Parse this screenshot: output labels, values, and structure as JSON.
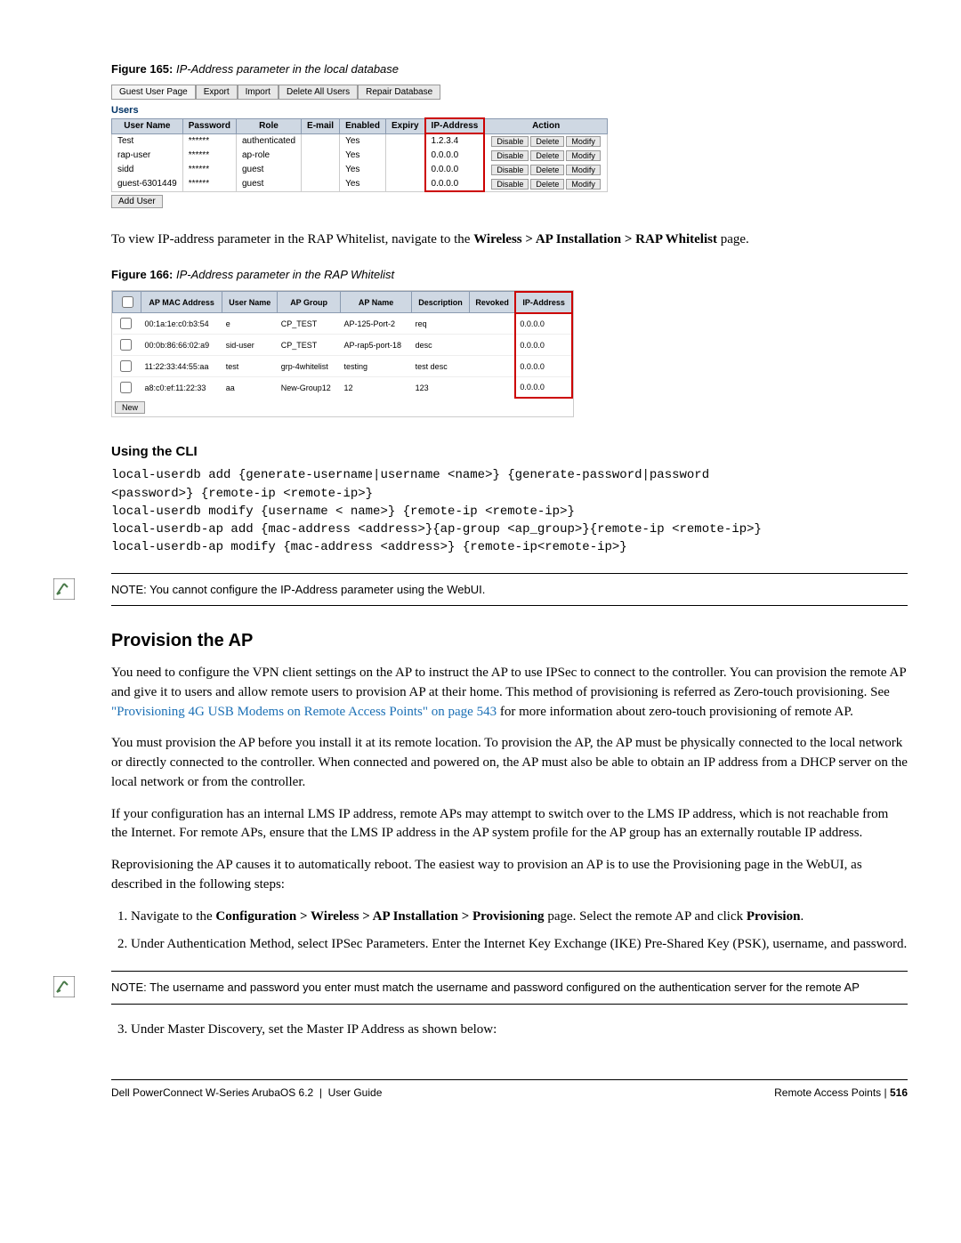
{
  "figure165": {
    "caption_label": "Figure 165:",
    "caption_text": "IP-Address parameter in the local database",
    "tabs": [
      "Guest User Page",
      "Export",
      "Import",
      "Delete All Users",
      "Repair Database"
    ],
    "section_label": "Users",
    "headers": [
      "User Name",
      "Password",
      "Role",
      "E-mail",
      "Enabled",
      "Expiry",
      "IP-Address",
      "Action"
    ],
    "rows": [
      {
        "user": "Test",
        "pass": "******",
        "role": "authenticated",
        "email": "",
        "enabled": "Yes",
        "expiry": "",
        "ip": "1.2.3.4"
      },
      {
        "user": "rap-user",
        "pass": "******",
        "role": "ap-role",
        "email": "",
        "enabled": "Yes",
        "expiry": "",
        "ip": "0.0.0.0"
      },
      {
        "user": "sidd",
        "pass": "******",
        "role": "guest",
        "email": "",
        "enabled": "Yes",
        "expiry": "",
        "ip": "0.0.0.0"
      },
      {
        "user": "guest-6301449",
        "pass": "******",
        "role": "guest",
        "email": "",
        "enabled": "Yes",
        "expiry": "",
        "ip": "0.0.0.0"
      }
    ],
    "action_buttons": [
      "Disable",
      "Delete",
      "Modify"
    ],
    "add_user_button": "Add User"
  },
  "para1_pre": "To view IP-address parameter in the RAP Whitelist, navigate to the ",
  "para1_bold": "Wireless > AP Installation > RAP Whitelist",
  "para1_post": " page.",
  "figure166": {
    "caption_label": "Figure 166:",
    "caption_text": "IP-Address parameter in the RAP Whitelist",
    "headers": [
      "",
      "AP MAC Address",
      "User Name",
      "AP Group",
      "AP Name",
      "Description",
      "Revoked",
      "IP-Address"
    ],
    "rows": [
      {
        "mac": "00:1a:1e:c0:b3:54",
        "user": "e",
        "group": "CP_TEST",
        "name": "AP-125-Port-2",
        "desc": "req",
        "rev": "",
        "ip": "0.0.0.0"
      },
      {
        "mac": "00:0b:86:66:02:a9",
        "user": "sid-user",
        "group": "CP_TEST",
        "name": "AP-rap5-port-18",
        "desc": "desc",
        "rev": "",
        "ip": "0.0.0.0"
      },
      {
        "mac": "11:22:33:44:55:aa",
        "user": "test",
        "group": "grp-4whitelist",
        "name": "testing",
        "desc": "test desc",
        "rev": "",
        "ip": "0.0.0.0"
      },
      {
        "mac": "a8:c0:ef:11:22:33",
        "user": "aa",
        "group": "New-Group12",
        "name": "12",
        "desc": "123",
        "rev": "",
        "ip": "0.0.0.0"
      }
    ],
    "new_button": "New"
  },
  "cli_heading": "Using the CLI",
  "cli_text": "local-userdb add {generate-username|username <name>} {generate-password|password\n<password>} {remote-ip <remote-ip>}\nlocal-userdb modify {username < name>} {remote-ip <remote-ip>}\nlocal-userdb-ap add {mac-address <address>}{ap-group <ap_group>}{remote-ip <remote-ip>}\nlocal-userdb-ap modify {mac-address <address>} {remote-ip<remote-ip>}",
  "note1": "NOTE: You cannot configure the IP-Address parameter using the WebUI.",
  "section_heading": "Provision the AP",
  "para2_a": "You need to configure the VPN client settings on the AP to instruct the AP to use IPSec to connect to the controller. You can provision the remote AP and give it to users and allow remote users to provision AP at their home. This method of provisioning is referred as Zero-touch provisioning. See ",
  "para2_link": "\"Provisioning 4G USB Modems on Remote Access Points\" on page 543",
  "para2_b": " for more information about zero-touch provisioning of remote AP.",
  "para3": "You must provision the AP before you install it at its remote location. To provision the AP, the AP must be physically connected to the local network or directly connected to the controller. When connected and powered on, the AP must also be able to obtain an IP address from a DHCP server on the local network or from the controller.",
  "para4": "If your configuration has an internal LMS IP address, remote APs may attempt to switch over to the LMS IP address, which is not reachable from the Internet. For remote APs, ensure that the LMS IP address in the AP system profile for the AP group has an externally routable IP address.",
  "para5": "Reprovisioning the AP causes it to automatically reboot. The easiest way to provision an AP is to use the Provisioning page in the WebUI, as described in the following steps:",
  "step1_a": "Navigate to the ",
  "step1_bold1": "Configuration > Wireless > AP Installation > Provisioning",
  "step1_b": " page. Select the remote AP and click ",
  "step1_bold2": "Provision",
  "step1_c": ".",
  "step2": "Under Authentication Method, select IPSec Parameters. Enter the Internet Key Exchange (IKE) Pre-Shared Key (PSK), username, and password.",
  "note2": "NOTE: The username and password you enter must match the username and password configured on the authentication server for the remote AP",
  "step3": "Under Master Discovery, set the Master IP Address as shown below:",
  "footer_left": "Dell PowerConnect W-Series ArubaOS 6.2",
  "footer_left2": "User Guide",
  "footer_right_a": "Remote Access Points",
  "footer_right_b": "516"
}
